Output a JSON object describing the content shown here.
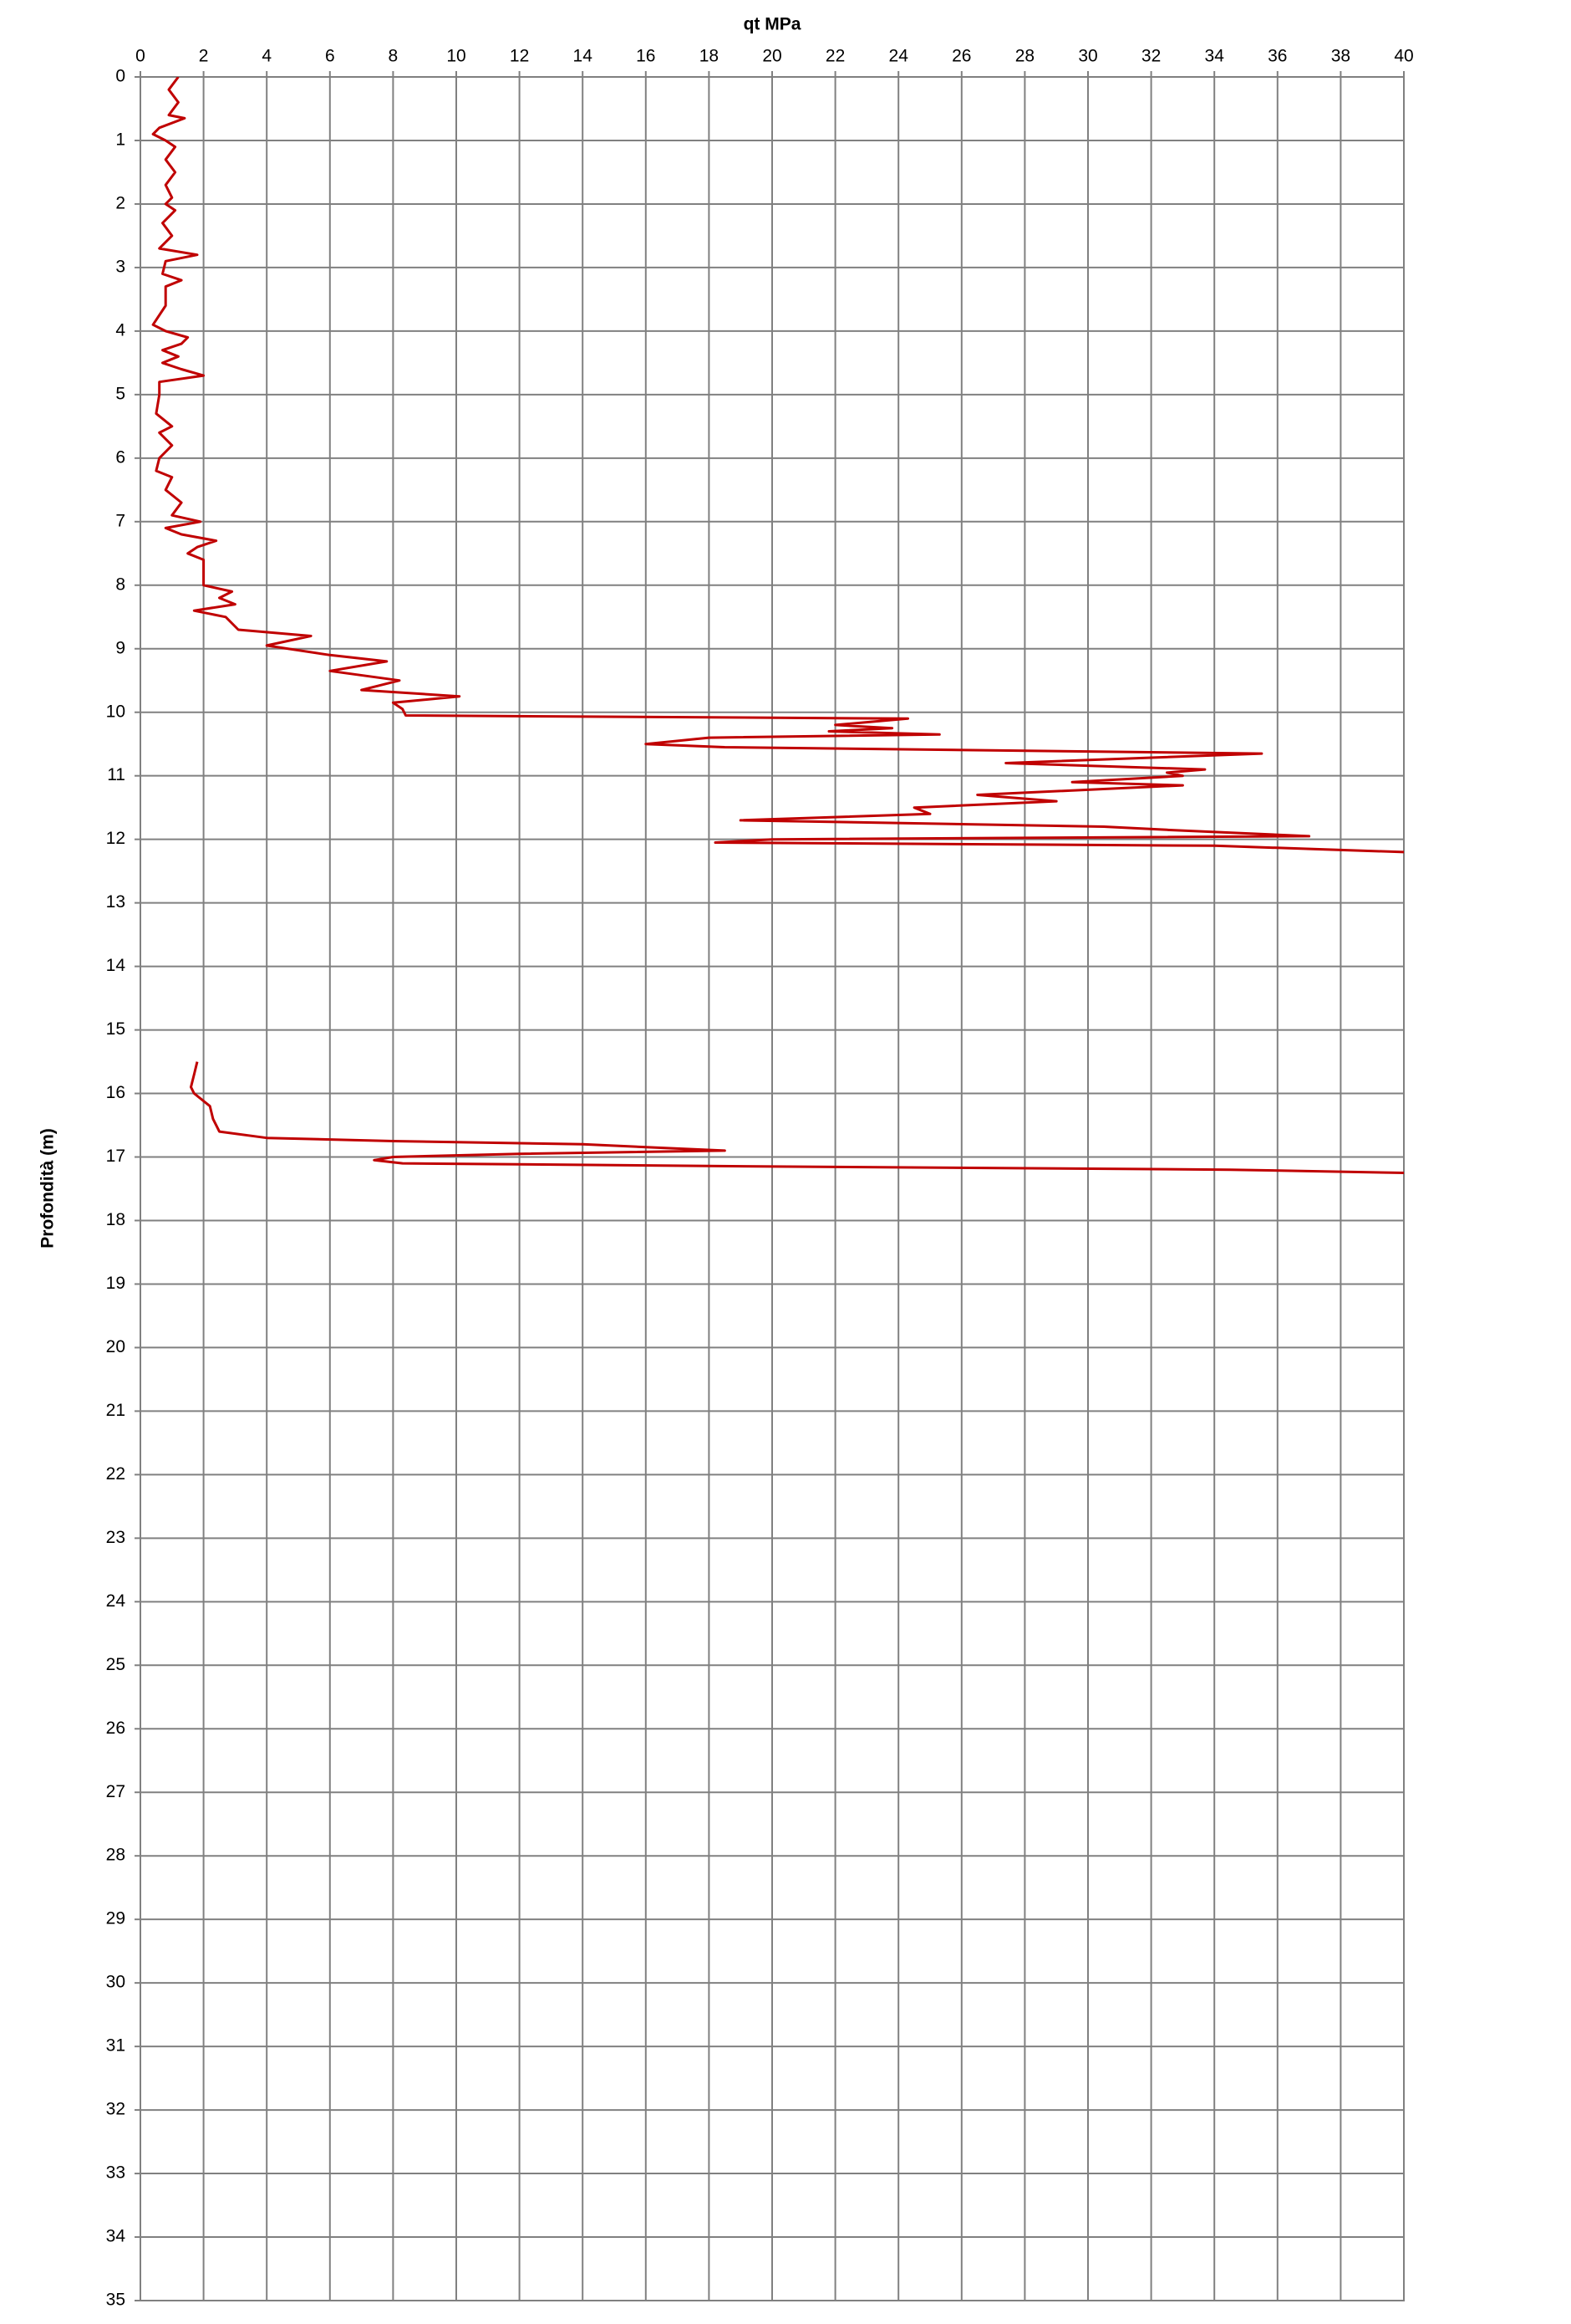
{
  "chart_data": {
    "type": "line",
    "title": "qt MPa",
    "ylabel": "Profondità (m)",
    "color": "#c00000",
    "grid": true,
    "y_inverted": true,
    "xlim": [
      0,
      40
    ],
    "ylim": [
      0,
      35
    ],
    "xticks": [
      0,
      2,
      4,
      6,
      8,
      10,
      12,
      14,
      16,
      18,
      20,
      22,
      24,
      26,
      28,
      30,
      32,
      34,
      36,
      38,
      40
    ],
    "yticks": [
      0,
      1,
      2,
      3,
      4,
      5,
      6,
      7,
      8,
      9,
      10,
      11,
      12,
      13,
      14,
      15,
      16,
      17,
      18,
      19,
      20,
      21,
      22,
      23,
      24,
      25,
      26,
      27,
      28,
      29,
      30,
      31,
      32,
      33,
      34,
      35
    ],
    "x": [
      1.2,
      0.9,
      1.2,
      0.9,
      1.4,
      0.6,
      0.4,
      0.8,
      1.1,
      0.8,
      1.1,
      0.8,
      1.0,
      0.8,
      1.1,
      0.7,
      1.0,
      0.6,
      1.8,
      0.8,
      0.7,
      1.3,
      0.8,
      0.8,
      0.4,
      0.8,
      1.5,
      1.3,
      0.7,
      1.2,
      0.7,
      1.3,
      2.0,
      0.6,
      0.6,
      0.5,
      1.0,
      0.6,
      1.0,
      0.6,
      0.5,
      1.0,
      0.8,
      1.3,
      1.0,
      1.9,
      0.8,
      1.3,
      2.4,
      1.8,
      1.5,
      2.0,
      2.0,
      2.0,
      2.9,
      2.5,
      3.0,
      1.7,
      2.7,
      3.1,
      5.4,
      4.0,
      6.0,
      7.8,
      6.0,
      8.2,
      7.0,
      10.1,
      8.0,
      8.3,
      8.4,
      24.3,
      22.0,
      23.8,
      21.8,
      25.3,
      18.0,
      16.0,
      18.5,
      35.5,
      27.4,
      33.7,
      32.5,
      33.0,
      29.5,
      33.0,
      26.5,
      29.0,
      24.5,
      25.0,
      19.0,
      30.5,
      32.5,
      37.0,
      20.0,
      18.2,
      34.0,
      40.0,
      null,
      1.8,
      1.7,
      1.6,
      1.7,
      2.2,
      2.3,
      2.5,
      4.0,
      8.0,
      14.0,
      18.5,
      12.0,
      8.0,
      7.4,
      8.3,
      20.0,
      34.5,
      40.0
    ],
    "y": [
      0.0,
      0.2,
      0.4,
      0.6,
      0.65,
      0.8,
      0.9,
      1.0,
      1.1,
      1.3,
      1.5,
      1.7,
      1.9,
      2.0,
      2.1,
      2.3,
      2.5,
      2.7,
      2.8,
      2.9,
      3.1,
      3.2,
      3.3,
      3.6,
      3.9,
      4.0,
      4.1,
      4.2,
      4.3,
      4.4,
      4.5,
      4.6,
      4.7,
      4.8,
      5.0,
      5.3,
      5.5,
      5.6,
      5.8,
      6.0,
      6.2,
      6.3,
      6.5,
      6.7,
      6.9,
      7.0,
      7.1,
      7.2,
      7.3,
      7.4,
      7.5,
      7.6,
      7.8,
      8.0,
      8.1,
      8.2,
      8.3,
      8.4,
      8.5,
      8.7,
      8.8,
      8.95,
      9.1,
      9.2,
      9.35,
      9.5,
      9.65,
      9.75,
      9.85,
      9.95,
      10.05,
      10.1,
      10.2,
      10.25,
      10.3,
      10.35,
      10.4,
      10.5,
      10.55,
      10.65,
      10.8,
      10.9,
      10.95,
      11.0,
      11.1,
      11.15,
      11.3,
      11.4,
      11.5,
      11.6,
      11.7,
      11.8,
      11.85,
      11.95,
      12.0,
      12.05,
      12.1,
      12.2,
      null,
      15.5,
      15.7,
      15.9,
      16.0,
      16.2,
      16.4,
      16.6,
      16.7,
      16.75,
      16.8,
      16.9,
      16.95,
      17.0,
      17.05,
      17.1,
      17.15,
      17.2,
      17.25
    ]
  }
}
